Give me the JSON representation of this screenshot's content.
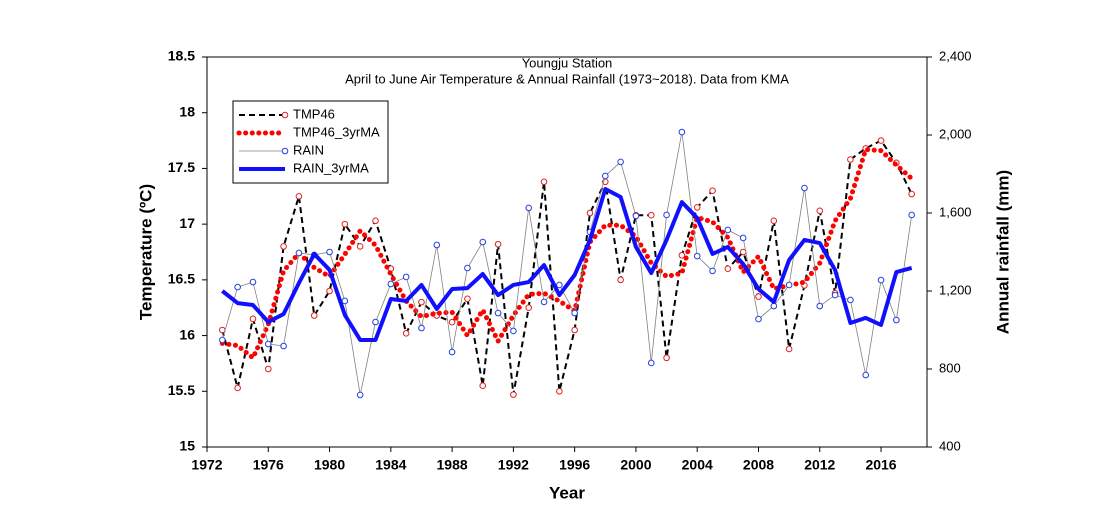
{
  "chart_data": {
    "type": "line",
    "title": "Youngju Station",
    "subtitle": "April to June Air Temperature & Annual Rainfall (1973~2018). Data from KMA",
    "xlabel": "Year",
    "ylabel": "Temperature (ºC)",
    "y2label": "Annual rainfall (mm)",
    "x": [
      1973,
      1974,
      1975,
      1976,
      1977,
      1978,
      1979,
      1980,
      1981,
      1982,
      1983,
      1984,
      1985,
      1986,
      1987,
      1988,
      1989,
      1990,
      1991,
      1992,
      1993,
      1994,
      1995,
      1996,
      1997,
      1998,
      1999,
      2000,
      2001,
      2002,
      2003,
      2004,
      2005,
      2006,
      2007,
      2008,
      2009,
      2010,
      2011,
      2012,
      2013,
      2014,
      2015,
      2016,
      2017,
      2018
    ],
    "xlim": [
      1972,
      2019
    ],
    "xticks": [
      1972,
      1976,
      1980,
      1984,
      1988,
      1992,
      1996,
      2000,
      2004,
      2008,
      2012,
      2016
    ],
    "ylim": [
      15,
      18.5
    ],
    "yticks": [
      15,
      15.5,
      16,
      16.5,
      17,
      17.5,
      18,
      18.5
    ],
    "y2lim": [
      400,
      2400
    ],
    "y2ticks": [
      400,
      800,
      {
        "value": 1200,
        "label": "1,200"
      },
      {
        "value": 1600,
        "label": "1,600"
      },
      {
        "value": 2000,
        "label": "2,000"
      },
      {
        "value": 2400,
        "label": "2,400"
      }
    ],
    "legend": "upper left",
    "series": [
      {
        "name": "TMP46",
        "color": "#000000",
        "line_style": "dashed",
        "marker_color": "#e02020",
        "values": [
          16.05,
          15.53,
          16.15,
          15.7,
          16.8,
          17.25,
          16.18,
          16.4,
          17.0,
          16.8,
          17.03,
          16.6,
          16.02,
          16.3,
          16.18,
          16.12,
          16.33,
          15.55,
          16.82,
          15.47,
          16.25,
          17.38,
          15.5,
          16.05,
          17.1,
          17.38,
          16.5,
          17.08,
          17.08,
          15.8,
          16.72,
          17.15,
          17.3,
          16.6,
          16.75,
          16.35,
          17.03,
          15.88,
          16.45,
          17.12,
          16.38,
          17.58,
          17.68,
          17.75,
          17.55,
          17.27
        ]
      },
      {
        "name": "TMP46_3yrMA",
        "color": "#ff0000",
        "line_style": "dotted",
        "values": [
          15.93,
          15.91,
          15.8,
          16.1,
          16.58,
          16.74,
          16.61,
          16.53,
          16.73,
          16.94,
          16.81,
          16.55,
          16.31,
          16.17,
          16.2,
          16.21,
          16.0,
          16.23,
          15.95,
          16.18,
          16.37,
          16.38,
          16.31,
          16.22,
          16.84,
          16.99,
          16.99,
          16.89,
          16.65,
          16.53,
          16.56,
          17.06,
          17.02,
          16.88,
          16.57,
          16.71,
          16.42,
          16.45,
          16.48,
          16.65,
          17.03,
          17.23,
          17.67,
          17.66,
          17.53,
          17.41
        ]
      },
      {
        "name": "RAIN",
        "color": "#808080",
        "line_style": "thin",
        "marker_color": "#2040e0",
        "axis": "y2",
        "values": [
          949,
          1220,
          1246,
          928,
          918,
          1395,
          1385,
          1400,
          1149,
          667,
          1041,
          1236,
          1272,
          1010,
          1436,
          887,
          1318,
          1451,
          1087,
          995,
          1626,
          1144,
          1231,
          1087,
          1503,
          1790,
          1862,
          1585,
          831,
          1590,
          2015,
          1379,
          1303,
          1513,
          1472,
          1056,
          1123,
          1231,
          1728,
          1123,
          1179,
          1154,
          769,
          1256,
          1051,
          1590
        ]
      },
      {
        "name": "RAIN_3yrMA",
        "color": "#1010ff",
        "line_style": "thick",
        "axis": "y2",
        "values": [
          1200,
          1138,
          1128,
          1041,
          1082,
          1241,
          1390,
          1308,
          1077,
          949,
          949,
          1159,
          1149,
          1231,
          1108,
          1210,
          1215,
          1287,
          1179,
          1231,
          1246,
          1333,
          1179,
          1282,
          1462,
          1723,
          1682,
          1426,
          1292,
          1462,
          1656,
          1574,
          1390,
          1426,
          1338,
          1210,
          1144,
          1359,
          1462,
          1446,
          1308,
          1036,
          1062,
          1026,
          1297,
          1318
        ]
      }
    ]
  }
}
